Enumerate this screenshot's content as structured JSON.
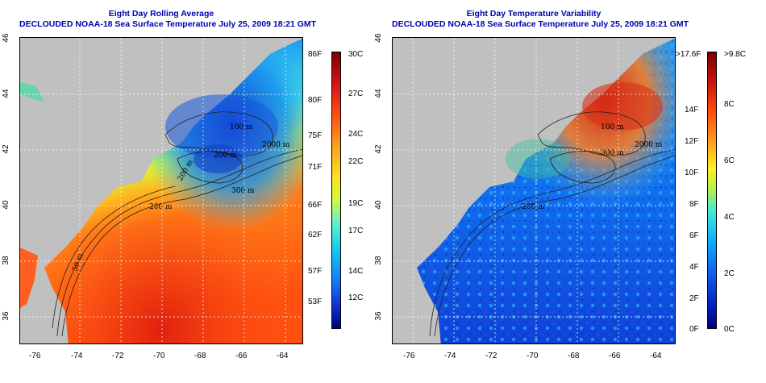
{
  "left": {
    "title_line1": "Eight Day Rolling Average",
    "title_line2": "DECLOUDED NOAA-18 Sea Surface Temperature July 25, 2009 18:21 GMT",
    "colorbar": {
      "f_labels": [
        "86F",
        "80F",
        "75F",
        "71F",
        "66F",
        "62F",
        "57F",
        "53F"
      ],
      "c_labels": [
        "30C",
        "27C",
        "24C",
        "22C",
        "19C",
        "17C",
        "14C",
        "12C"
      ],
      "colors": [
        "#7a0000",
        "#c8101a",
        "#ff4a12",
        "#ff9a1e",
        "#ffe020",
        "#d8f838",
        "#60f0d0",
        "#10c8f0",
        "#1880ff",
        "#1030d0",
        "#00007a"
      ]
    },
    "contours": [
      "100 m",
      "200 m",
      "300 m",
      "2000 m",
      "200 m",
      "50 m",
      "200 m"
    ]
  },
  "right": {
    "title_line1": "Eight Day Temperature Variability",
    "title_line2": "DECLOUDED NOAA-18 Sea Surface Temperature July 25, 2009 18:21 GMT",
    "colorbar": {
      "f_labels": [
        ">17.6F",
        "14F",
        "12F",
        "10F",
        "8F",
        "6F",
        "4F",
        "2F",
        "0F"
      ],
      "c_labels": [
        ">9.8C",
        "8C",
        "6C",
        "4C",
        "2C",
        "0C"
      ],
      "colors": [
        "#7a0000",
        "#c81010",
        "#ff5010",
        "#ffa020",
        "#fff020",
        "#b0f050",
        "#40e8d8",
        "#10b0f8",
        "#1060f0",
        "#0020c0",
        "#00007a"
      ]
    },
    "contours": [
      "100 m",
      "300 m",
      "2000 m",
      "200 m"
    ]
  },
  "axes": {
    "x_ticks": [
      "-76",
      "-74",
      "-72",
      "-70",
      "-68",
      "-66",
      "-64"
    ],
    "y_ticks": [
      "46",
      "44",
      "42",
      "40",
      "38",
      "36"
    ]
  },
  "colors": {
    "land": "#c0c0c0",
    "title": "#0000b0",
    "grid": "#ffffff"
  }
}
